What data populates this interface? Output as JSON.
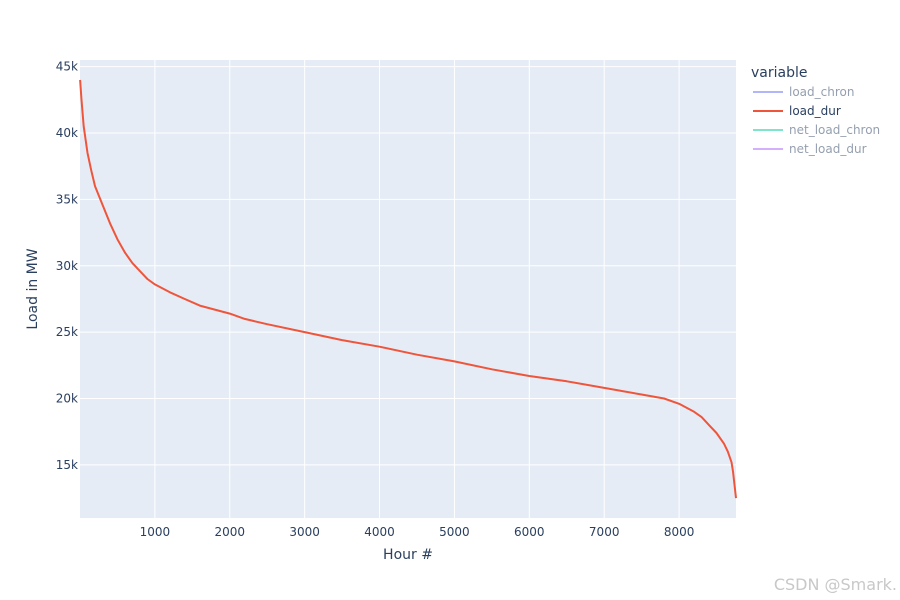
{
  "chart_data": {
    "type": "line",
    "xlabel": "Hour #",
    "ylabel": "Load in MW",
    "xlim": [
      0,
      8760
    ],
    "ylim": [
      11000,
      45500
    ],
    "x_ticks": [
      1000,
      2000,
      3000,
      4000,
      5000,
      6000,
      7000,
      8000
    ],
    "x_tick_labels": [
      "1000",
      "2000",
      "3000",
      "4000",
      "5000",
      "6000",
      "7000",
      "8000"
    ],
    "y_ticks": [
      15000,
      20000,
      25000,
      30000,
      35000,
      40000,
      45000
    ],
    "y_tick_labels": [
      "15k",
      "20k",
      "25k",
      "30k",
      "35k",
      "40k",
      "45k"
    ],
    "grid": true,
    "legend": {
      "title": "variable",
      "placement": "right",
      "items": [
        {
          "label": "load_chron",
          "color": "#636efa",
          "visible": false
        },
        {
          "label": "load_dur",
          "color": "#ef553b",
          "visible": true
        },
        {
          "label": "net_load_chron",
          "color": "#00cc96",
          "visible": false
        },
        {
          "label": "net_load_dur",
          "color": "#ab63fa",
          "visible": false
        }
      ]
    },
    "series": [
      {
        "name": "load_dur",
        "color": "#ef553b",
        "x": [
          1,
          20,
          50,
          100,
          150,
          200,
          300,
          400,
          500,
          600,
          700,
          800,
          900,
          1000,
          1200,
          1400,
          1600,
          1800,
          2000,
          2200,
          2500,
          3000,
          3500,
          4000,
          4500,
          5000,
          5500,
          6000,
          6500,
          7000,
          7500,
          7800,
          8000,
          8200,
          8300,
          8400,
          8500,
          8600,
          8650,
          8700,
          8720,
          8740,
          8760
        ],
        "y": [
          44000,
          42500,
          40500,
          38500,
          37200,
          36000,
          34600,
          33200,
          32000,
          31000,
          30200,
          29600,
          29000,
          28600,
          28000,
          27500,
          27000,
          26700,
          26400,
          26000,
          25600,
          25000,
          24400,
          23900,
          23300,
          22800,
          22200,
          21700,
          21300,
          20800,
          20300,
          20000,
          19600,
          19000,
          18600,
          18000,
          17400,
          16600,
          16000,
          15200,
          14500,
          13500,
          12500
        ]
      }
    ]
  },
  "watermark": "CSDN @Smark."
}
